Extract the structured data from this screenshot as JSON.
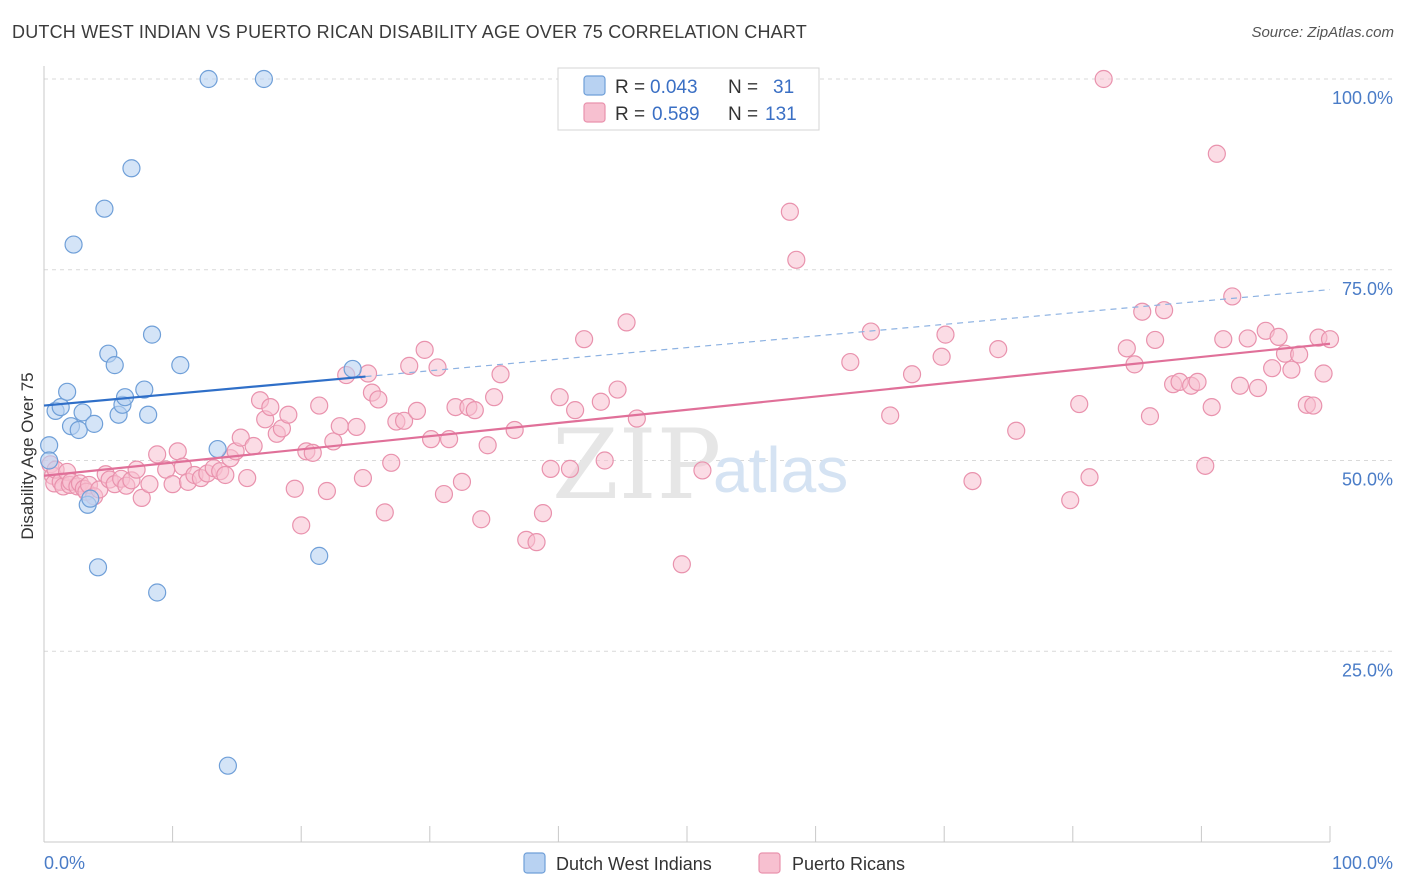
{
  "title": "DUTCH WEST INDIAN VS PUERTO RICAN DISABILITY AGE OVER 75 CORRELATION CHART",
  "source": "Source: ZipAtlas.com",
  "watermark": {
    "zip": "ZIP",
    "atlas": "atlas"
  },
  "legend": {
    "rows": [
      {
        "r_label": "R =",
        "r_value": "0.043",
        "n_label": "N =",
        "n_value": "31"
      },
      {
        "r_label": "R =",
        "r_value": "0.589",
        "n_label": "N =",
        "n_value": "131"
      }
    ]
  },
  "bottom_legend": {
    "series1": "Dutch West Indians",
    "series2": "Puerto Ricans"
  },
  "colors": {
    "blue_fill": "#b8d2f2",
    "blue_stroke": "#6f9fd8",
    "blue_line": "#2f6fc8",
    "pink_fill": "#f7c0d0",
    "pink_stroke": "#e992ad",
    "pink_line": "#e07099",
    "tick_text": "#4a7cc7",
    "grid": "#d9d9d9"
  },
  "chart_data": {
    "type": "scatter",
    "title": "DUTCH WEST INDIAN VS PUERTO RICAN DISABILITY AGE OVER 75 CORRELATION CHART",
    "xlabel": "",
    "ylabel": "Disability Age Over 75",
    "xlim": [
      0,
      100
    ],
    "ylim": [
      0,
      102
    ],
    "x_tick_labels": [
      "0.0%",
      "100.0%"
    ],
    "y_ticks": [
      25,
      50,
      75,
      100
    ],
    "y_tick_labels": [
      "25.0%",
      "50.0%",
      "75.0%",
      "100.0%"
    ],
    "grid": true,
    "legend_position": "top-center",
    "series": [
      {
        "name": "Dutch West Indians",
        "points": [
          [
            0.4,
            52.0
          ],
          [
            0.4,
            50.0
          ],
          [
            0.9,
            56.5
          ],
          [
            1.3,
            57.0
          ],
          [
            1.8,
            59.0
          ],
          [
            2.1,
            54.5
          ],
          [
            2.3,
            78.3
          ],
          [
            2.7,
            54.0
          ],
          [
            3.0,
            56.3
          ],
          [
            3.4,
            44.2
          ],
          [
            3.6,
            45.0
          ],
          [
            3.9,
            54.8
          ],
          [
            4.2,
            36.0
          ],
          [
            4.7,
            83.0
          ],
          [
            5.0,
            64.0
          ],
          [
            5.5,
            62.5
          ],
          [
            5.8,
            56.0
          ],
          [
            6.1,
            57.3
          ],
          [
            6.3,
            58.3
          ],
          [
            6.8,
            88.3
          ],
          [
            7.8,
            59.3
          ],
          [
            8.1,
            56.0
          ],
          [
            8.4,
            66.5
          ],
          [
            8.8,
            32.7
          ],
          [
            10.6,
            62.5
          ],
          [
            12.8,
            100.0
          ],
          [
            13.5,
            51.5
          ],
          [
            14.3,
            10.0
          ],
          [
            17.1,
            100.0
          ],
          [
            21.4,
            37.5
          ],
          [
            24.0,
            62.0
          ]
        ]
      },
      {
        "name": "Puerto Ricans",
        "points": [
          [
            0.5,
            49.5
          ],
          [
            0.7,
            48.0
          ],
          [
            0.8,
            47.0
          ],
          [
            0.9,
            48.8
          ],
          [
            1.3,
            47.2
          ],
          [
            1.5,
            46.6
          ],
          [
            1.8,
            48.5
          ],
          [
            2.0,
            46.8
          ],
          [
            2.1,
            47.2
          ],
          [
            2.6,
            46.6
          ],
          [
            2.8,
            47.0
          ],
          [
            3.1,
            46.3
          ],
          [
            3.3,
            45.9
          ],
          [
            3.5,
            46.8
          ],
          [
            3.9,
            45.3
          ],
          [
            4.3,
            46.2
          ],
          [
            4.8,
            48.2
          ],
          [
            5.1,
            47.5
          ],
          [
            5.5,
            46.9
          ],
          [
            6.0,
            47.6
          ],
          [
            6.4,
            46.7
          ],
          [
            6.8,
            47.4
          ],
          [
            7.2,
            48.8
          ],
          [
            7.6,
            45.1
          ],
          [
            8.2,
            46.9
          ],
          [
            8.8,
            50.8
          ],
          [
            9.5,
            48.8
          ],
          [
            10.0,
            46.9
          ],
          [
            10.4,
            51.2
          ],
          [
            10.8,
            49.2
          ],
          [
            11.2,
            47.2
          ],
          [
            11.7,
            48.1
          ],
          [
            12.2,
            47.7
          ],
          [
            12.7,
            48.3
          ],
          [
            13.2,
            49.0
          ],
          [
            13.7,
            48.6
          ],
          [
            14.1,
            48.1
          ],
          [
            14.5,
            50.3
          ],
          [
            14.9,
            51.2
          ],
          [
            15.3,
            53.0
          ],
          [
            15.8,
            47.7
          ],
          [
            16.3,
            51.9
          ],
          [
            16.8,
            57.9
          ],
          [
            17.2,
            55.4
          ],
          [
            17.6,
            57.0
          ],
          [
            18.1,
            53.5
          ],
          [
            18.5,
            54.2
          ],
          [
            19.0,
            56.0
          ],
          [
            19.5,
            46.3
          ],
          [
            20.0,
            41.5
          ],
          [
            20.4,
            51.2
          ],
          [
            20.9,
            51.0
          ],
          [
            21.4,
            57.2
          ],
          [
            22.0,
            46.0
          ],
          [
            22.5,
            52.5
          ],
          [
            23.0,
            54.5
          ],
          [
            23.5,
            61.2
          ],
          [
            24.3,
            54.4
          ],
          [
            24.8,
            47.7
          ],
          [
            25.2,
            61.4
          ],
          [
            25.5,
            58.9
          ],
          [
            26.0,
            58.0
          ],
          [
            26.5,
            43.2
          ],
          [
            27.0,
            49.7
          ],
          [
            27.4,
            55.1
          ],
          [
            28.0,
            55.2
          ],
          [
            28.4,
            62.4
          ],
          [
            29.0,
            56.5
          ],
          [
            29.6,
            64.5
          ],
          [
            30.1,
            52.8
          ],
          [
            30.6,
            62.2
          ],
          [
            31.1,
            45.6
          ],
          [
            31.5,
            52.8
          ],
          [
            32.0,
            57.0
          ],
          [
            32.5,
            47.2
          ],
          [
            33.0,
            57.0
          ],
          [
            33.5,
            56.6
          ],
          [
            34.0,
            42.3
          ],
          [
            34.5,
            52.0
          ],
          [
            35.0,
            58.3
          ],
          [
            35.5,
            61.3
          ],
          [
            36.6,
            54.0
          ],
          [
            37.5,
            39.6
          ],
          [
            38.3,
            39.3
          ],
          [
            38.8,
            43.1
          ],
          [
            39.4,
            48.9
          ],
          [
            40.1,
            58.3
          ],
          [
            40.9,
            48.9
          ],
          [
            41.3,
            56.6
          ],
          [
            42.0,
            65.9
          ],
          [
            43.3,
            57.7
          ],
          [
            43.6,
            50.0
          ],
          [
            44.6,
            59.3
          ],
          [
            45.3,
            68.1
          ],
          [
            46.1,
            55.5
          ],
          [
            49.6,
            36.4
          ],
          [
            51.2,
            48.7
          ],
          [
            58.0,
            82.6
          ],
          [
            58.5,
            76.3
          ],
          [
            62.7,
            62.9
          ],
          [
            64.3,
            66.9
          ],
          [
            65.8,
            55.9
          ],
          [
            67.5,
            61.3
          ],
          [
            69.8,
            63.6
          ],
          [
            70.1,
            66.5
          ],
          [
            72.2,
            47.3
          ],
          [
            74.2,
            64.6
          ],
          [
            75.6,
            53.9
          ],
          [
            79.8,
            44.8
          ],
          [
            80.5,
            57.4
          ],
          [
            81.3,
            47.8
          ],
          [
            82.4,
            100.0
          ],
          [
            84.2,
            64.7
          ],
          [
            84.8,
            62.6
          ],
          [
            85.4,
            69.5
          ],
          [
            86.0,
            55.8
          ],
          [
            86.4,
            65.8
          ],
          [
            87.1,
            69.7
          ],
          [
            87.8,
            60.0
          ],
          [
            88.3,
            60.3
          ],
          [
            89.2,
            59.8
          ],
          [
            89.7,
            60.3
          ],
          [
            90.3,
            49.3
          ],
          [
            90.8,
            57.0
          ],
          [
            91.2,
            90.2
          ],
          [
            91.7,
            65.9
          ],
          [
            92.4,
            71.5
          ],
          [
            93.0,
            59.8
          ],
          [
            93.6,
            66.0
          ],
          [
            94.4,
            59.5
          ],
          [
            95.0,
            67.0
          ],
          [
            95.5,
            62.1
          ],
          [
            96.0,
            66.2
          ],
          [
            96.5,
            64.0
          ],
          [
            97.0,
            61.9
          ],
          [
            97.6,
            63.9
          ],
          [
            98.2,
            57.3
          ],
          [
            98.7,
            57.2
          ],
          [
            99.1,
            66.1
          ],
          [
            99.5,
            61.4
          ],
          [
            100.0,
            65.9
          ]
        ]
      }
    ],
    "trend_lines": [
      {
        "series": "Dutch West Indians",
        "solid_x": [
          0,
          25
        ],
        "dashed_x": [
          25,
          100
        ],
        "y_at_0": 57.2,
        "y_at_100": 72.4
      },
      {
        "series": "Puerto Ricans",
        "x": [
          0,
          100
        ],
        "y_at_0": 48.0,
        "y_at_100": 65.3
      }
    ]
  }
}
